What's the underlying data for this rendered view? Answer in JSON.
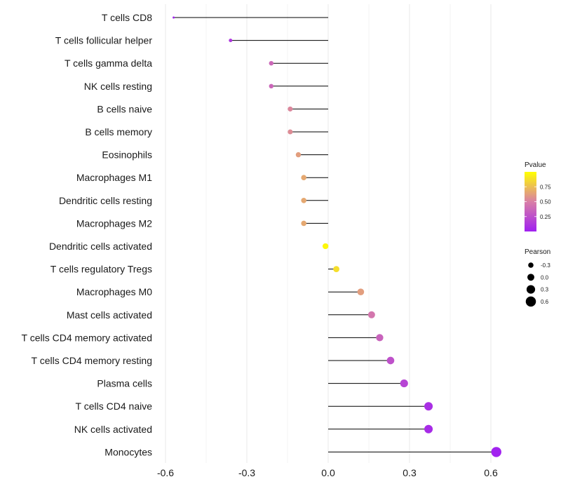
{
  "chart_data": {
    "type": "lollipop",
    "title": "",
    "xlabel": "",
    "ylabel": "",
    "xlim": [
      -0.6,
      0.6
    ],
    "xticks": [
      -0.6,
      -0.3,
      0.0,
      0.3,
      0.6
    ],
    "xtick_labels": [
      "-0.6",
      "-0.3",
      "0.0",
      "0.3",
      "0.6"
    ],
    "baseline": 0.0,
    "grid": "vertical",
    "categories": [
      "T cells CD8",
      "T cells follicular helper",
      "T cells gamma delta",
      "NK cells resting",
      "B cells naive",
      "B cells memory",
      "Eosinophils",
      "Macrophages M1",
      "Dendritic cells resting",
      "Macrophages M2",
      "Dendritic cells activated",
      "T cells regulatory  Tregs ",
      "Macrophages M0",
      "Mast cells activated",
      "T cells CD4 memory activated",
      "T cells CD4 memory resting",
      "Plasma cells",
      "T cells CD4 naive",
      "NK cells activated",
      "Monocytes"
    ],
    "pearson": [
      -0.57,
      -0.36,
      -0.21,
      -0.21,
      -0.14,
      -0.14,
      -0.11,
      -0.09,
      -0.09,
      -0.09,
      -0.01,
      0.03,
      0.12,
      0.16,
      0.19,
      0.23,
      0.28,
      0.37,
      0.37,
      0.62
    ],
    "pvalue": [
      0.01,
      0.12,
      0.38,
      0.37,
      0.53,
      0.55,
      0.62,
      0.66,
      0.66,
      0.66,
      0.97,
      0.87,
      0.62,
      0.45,
      0.35,
      0.26,
      0.19,
      0.08,
      0.06,
      0.01
    ],
    "color_legend": {
      "title": "Pvalue",
      "ticks": [
        0.25,
        0.5,
        0.75
      ],
      "tick_labels": [
        "0.25",
        "0.50",
        "0.75"
      ],
      "range": [
        0.0,
        1.0
      ],
      "low_color": "#a020f0",
      "mid_color": "#d97fa6",
      "high_color": "#ffff00"
    },
    "size_legend": {
      "title": "Pearson",
      "values": [
        -0.3,
        0.0,
        0.3,
        0.6
      ],
      "labels": [
        "-0.3",
        "0.0",
        "0.3",
        "0.6"
      ]
    },
    "colors": {
      "segment": "#000000",
      "grid": "#ebebeb",
      "background": "#ffffff"
    }
  }
}
